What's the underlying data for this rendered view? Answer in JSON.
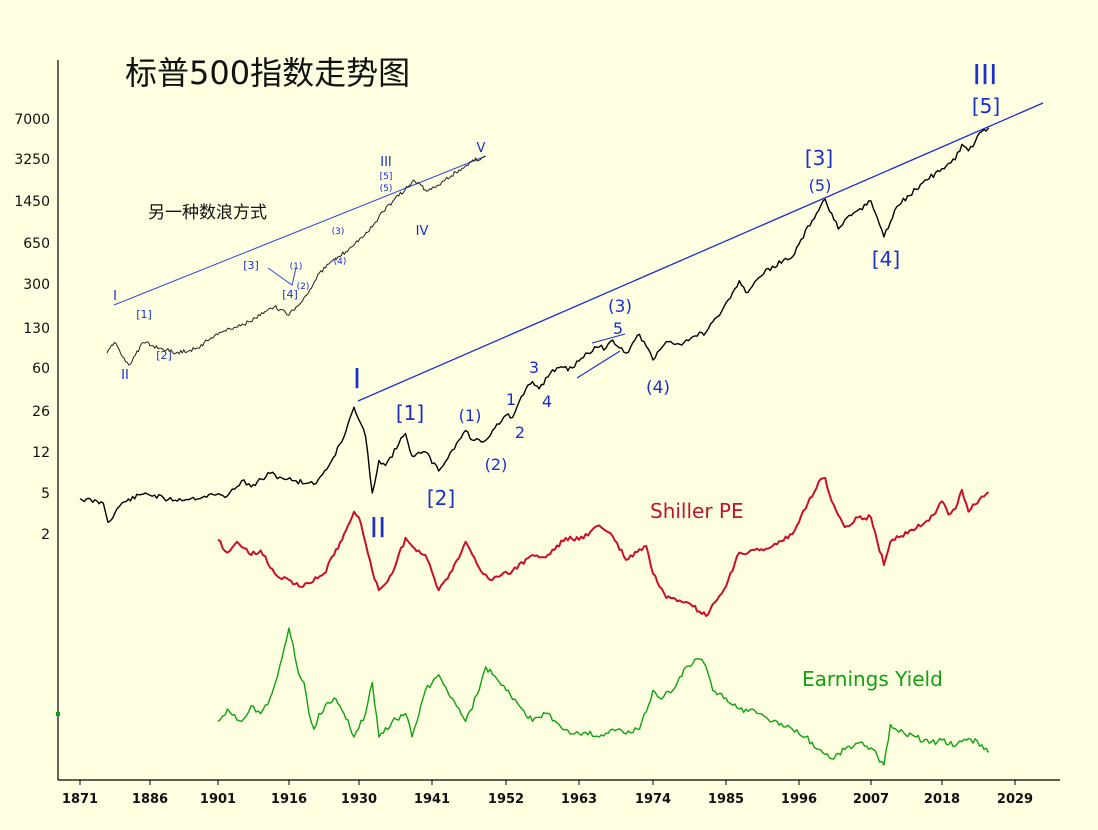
{
  "chart_data": {
    "type": "line",
    "title": "标普500指数走势图",
    "x_ticks": [
      "1871",
      "1886",
      "1901",
      "1916",
      "1930",
      "1941",
      "1952",
      "1963",
      "1974",
      "1985",
      "1996",
      "2007",
      "2018",
      "2029"
    ],
    "y_ticks": [
      7000,
      3250,
      1450,
      650,
      300,
      130,
      60,
      26,
      12,
      5,
      2
    ],
    "y_scale": "log",
    "xlim": [
      1871,
      2033
    ],
    "colors": {
      "price": "#000000",
      "wave": "#1a2fd0",
      "pe": "#c8102e",
      "ey": "#10a010",
      "background": "#fefee0"
    },
    "series": [
      {
        "name": "",
        "values": [
          [
            1871,
            4.4
          ],
          [
            1876,
            4.0
          ],
          [
            1877,
            2.6
          ],
          [
            1880,
            4.0
          ],
          [
            1885,
            5.0
          ],
          [
            1890,
            4.3
          ],
          [
            1895,
            4.4
          ],
          [
            1900,
            4.8
          ],
          [
            1903,
            4.7
          ],
          [
            1906,
            6.5
          ],
          [
            1908,
            5.7
          ],
          [
            1912,
            7.6
          ],
          [
            1914,
            7.0
          ],
          [
            1917,
            6.5
          ],
          [
            1920,
            6.2
          ],
          [
            1921,
            6.0
          ],
          [
            1924,
            9.0
          ],
          [
            1927,
            16.0
          ],
          [
            1929,
            28.0
          ],
          [
            1930,
            22.0
          ],
          [
            1931,
            16.0
          ],
          [
            1932,
            5.0
          ],
          [
            1933,
            10.0
          ],
          [
            1934,
            9.0
          ],
          [
            1936,
            14.0
          ],
          [
            1937,
            17.0
          ],
          [
            1938,
            11.0
          ],
          [
            1940,
            12.0
          ],
          [
            1942,
            8.0
          ],
          [
            1945,
            15.0
          ],
          [
            1946,
            18.0
          ],
          [
            1947,
            15.0
          ],
          [
            1949,
            15.0
          ],
          [
            1950,
            18.0
          ],
          [
            1952,
            24.0
          ],
          [
            1953,
            23.0
          ],
          [
            1955,
            40.0
          ],
          [
            1956,
            46.0
          ],
          [
            1957,
            40.0
          ],
          [
            1959,
            58.0
          ],
          [
            1962,
            60.0
          ],
          [
            1964,
            80.0
          ],
          [
            1966,
            90.0
          ],
          [
            1967,
            88.0
          ],
          [
            1968,
            103.0
          ],
          [
            1970,
            80.0
          ],
          [
            1972,
            115.0
          ],
          [
            1974,
            70.0
          ],
          [
            1976,
            100.0
          ],
          [
            1978,
            95.0
          ],
          [
            1980,
            110.0
          ],
          [
            1982,
            120.0
          ],
          [
            1984,
            165.0
          ],
          [
            1987,
            320.0
          ],
          [
            1988,
            255.0
          ],
          [
            1990,
            340.0
          ],
          [
            1992,
            420.0
          ],
          [
            1995,
            500.0
          ],
          [
            1998,
            1000.0
          ],
          [
            2000,
            1500.0
          ],
          [
            2002,
            850.0
          ],
          [
            2004,
            1100.0
          ],
          [
            2007,
            1450.0
          ],
          [
            2009,
            730.0
          ],
          [
            2011,
            1300.0
          ],
          [
            2015,
            2050.0
          ],
          [
            2018,
            2700.0
          ],
          [
            2020,
            3200.0
          ],
          [
            2021,
            4300.0
          ],
          [
            2022,
            3800.0
          ],
          [
            2024,
            5500.0
          ],
          [
            2025,
            5900.0
          ]
        ]
      },
      {
        "name": "Shiller PE",
        "values": [
          [
            1901,
            20.5
          ],
          [
            1903,
            17.5
          ],
          [
            1905,
            20.0
          ],
          [
            1908,
            17.0
          ],
          [
            1910,
            18.0
          ],
          [
            1913,
            13.5
          ],
          [
            1916,
            12.5
          ],
          [
            1918,
            11.5
          ],
          [
            1920,
            12.0
          ],
          [
            1923,
            13.5
          ],
          [
            1925,
            17.0
          ],
          [
            1927,
            22.0
          ],
          [
            1929,
            29.0
          ],
          [
            1930,
            27.0
          ],
          [
            1932,
            14.0
          ],
          [
            1933,
            11.0
          ],
          [
            1935,
            13.5
          ],
          [
            1937,
            21.0
          ],
          [
            1938,
            19.0
          ],
          [
            1940,
            17.0
          ],
          [
            1942,
            11.0
          ],
          [
            1944,
            14.0
          ],
          [
            1946,
            20.0
          ],
          [
            1948,
            14.5
          ],
          [
            1950,
            12.5
          ],
          [
            1953,
            14.0
          ],
          [
            1956,
            17.0
          ],
          [
            1958,
            16.5
          ],
          [
            1961,
            21.0
          ],
          [
            1963,
            20.5
          ],
          [
            1966,
            24.5
          ],
          [
            1968,
            21.5
          ],
          [
            1970,
            16.0
          ],
          [
            1973,
            19.0
          ],
          [
            1974,
            13.5
          ],
          [
            1976,
            10.0
          ],
          [
            1980,
            9.0
          ],
          [
            1982,
            8.0
          ],
          [
            1985,
            11.5
          ],
          [
            1987,
            17.5
          ],
          [
            1990,
            18.0
          ],
          [
            1992,
            19.0
          ],
          [
            1995,
            22.0
          ],
          [
            1997,
            30.0
          ],
          [
            1999,
            42.0
          ],
          [
            2000,
            44.0
          ],
          [
            2001,
            33.0
          ],
          [
            2003,
            24.0
          ],
          [
            2005,
            27.0
          ],
          [
            2007,
            27.0
          ],
          [
            2009,
            15.0
          ],
          [
            2010,
            20.0
          ],
          [
            2013,
            23.0
          ],
          [
            2016,
            26.0
          ],
          [
            2018,
            33.0
          ],
          [
            2019,
            28.0
          ],
          [
            2020,
            30.0
          ],
          [
            2021,
            38.0
          ],
          [
            2022,
            29.0
          ],
          [
            2024,
            35.0
          ],
          [
            2025,
            37.0
          ]
        ]
      },
      {
        "name": "Earnings Yield",
        "values": [
          [
            1901,
            5.0
          ],
          [
            1903,
            5.8
          ],
          [
            1906,
            5.0
          ],
          [
            1908,
            6.0
          ],
          [
            1910,
            5.5
          ],
          [
            1912,
            6.5
          ],
          [
            1914,
            8.5
          ],
          [
            1916,
            11.0
          ],
          [
            1918,
            8.0
          ],
          [
            1919,
            7.5
          ],
          [
            1920,
            5.5
          ],
          [
            1921,
            4.5
          ],
          [
            1922,
            5.5
          ],
          [
            1925,
            6.5
          ],
          [
            1927,
            5.5
          ],
          [
            1929,
            4.0
          ],
          [
            1931,
            5.5
          ],
          [
            1932,
            7.5
          ],
          [
            1933,
            4.0
          ],
          [
            1935,
            5.0
          ],
          [
            1937,
            5.5
          ],
          [
            1938,
            4.0
          ],
          [
            1940,
            7.0
          ],
          [
            1942,
            8.0
          ],
          [
            1944,
            6.5
          ],
          [
            1946,
            5.0
          ],
          [
            1948,
            7.0
          ],
          [
            1949,
            8.5
          ],
          [
            1950,
            8.0
          ],
          [
            1952,
            7.0
          ],
          [
            1954,
            6.0
          ],
          [
            1956,
            5.0
          ],
          [
            1958,
            5.5
          ],
          [
            1960,
            4.8
          ],
          [
            1962,
            4.2
          ],
          [
            1964,
            4.3
          ],
          [
            1966,
            4.0
          ],
          [
            1968,
            4.5
          ],
          [
            1970,
            4.2
          ],
          [
            1972,
            4.5
          ],
          [
            1974,
            7.0
          ],
          [
            1975,
            6.5
          ],
          [
            1977,
            7.0
          ],
          [
            1979,
            8.5
          ],
          [
            1981,
            9.0
          ],
          [
            1982,
            8.5
          ],
          [
            1983,
            7.0
          ],
          [
            1985,
            6.5
          ],
          [
            1987,
            5.8
          ],
          [
            1990,
            5.5
          ],
          [
            1992,
            5.0
          ],
          [
            1995,
            4.5
          ],
          [
            1997,
            4.0
          ],
          [
            1999,
            3.2
          ],
          [
            2001,
            2.6
          ],
          [
            2003,
            3.2
          ],
          [
            2005,
            3.6
          ],
          [
            2007,
            3.3
          ],
          [
            2009,
            2.2
          ],
          [
            2010,
            4.8
          ],
          [
            2012,
            4.3
          ],
          [
            2014,
            4.0
          ],
          [
            2016,
            3.6
          ],
          [
            2018,
            3.8
          ],
          [
            2020,
            3.4
          ],
          [
            2022,
            3.9
          ],
          [
            2024,
            3.5
          ],
          [
            2025,
            3.0
          ]
        ]
      }
    ],
    "inset": {
      "title": "另一种数浪方式",
      "values": [
        [
          1871,
          4.2
        ],
        [
          1873,
          6.0
        ],
        [
          1877,
          2.8
        ],
        [
          1881,
          6.0
        ],
        [
          1890,
          4.2
        ],
        [
          1896,
          5.0
        ],
        [
          1901,
          8.0
        ],
        [
          1906,
          10.0
        ],
        [
          1910,
          12.0
        ],
        [
          1914,
          16.0
        ],
        [
          1917,
          20.0
        ],
        [
          1920,
          17.0
        ],
        [
          1921,
          15.0
        ],
        [
          1923,
          20.0
        ],
        [
          1926,
          30.0
        ],
        [
          1929,
          60.0
        ],
        [
          1932,
          85.0
        ],
        [
          1935,
          110.0
        ],
        [
          1938,
          150.0
        ],
        [
          1941,
          210.0
        ],
        [
          1944,
          300.0
        ],
        [
          1947,
          500.0
        ],
        [
          1950,
          750.0
        ],
        [
          1953,
          1050.0
        ],
        [
          1955,
          1400.0
        ],
        [
          1957,
          1300.0
        ],
        [
          1959,
          1000.0
        ],
        [
          1961,
          1150.0
        ],
        [
          1964,
          1450.0
        ],
        [
          1967,
          1900.0
        ],
        [
          1970,
          2400.0
        ],
        [
          1972,
          2800.0
        ],
        [
          1975,
          3300.0
        ]
      ]
    },
    "wave_labels": {
      "main": [
        "I",
        "[1]",
        "[2]",
        "(1)",
        "(2)",
        "1",
        "2",
        "3",
        "4",
        "5",
        "(3)",
        "(4)",
        "[3]",
        "(5)",
        "[4]",
        "III",
        "[5]",
        "II"
      ],
      "inset": [
        "I",
        "[1]",
        "II",
        "[2]",
        "[3]",
        "[4]",
        "(1)",
        "(2)",
        "(3)",
        "(4)",
        "III",
        "[5]",
        "(5)",
        "IV",
        "V"
      ]
    },
    "annotations": {
      "pe_label": "Shiller PE",
      "ey_label": "Earnings Yield"
    }
  }
}
